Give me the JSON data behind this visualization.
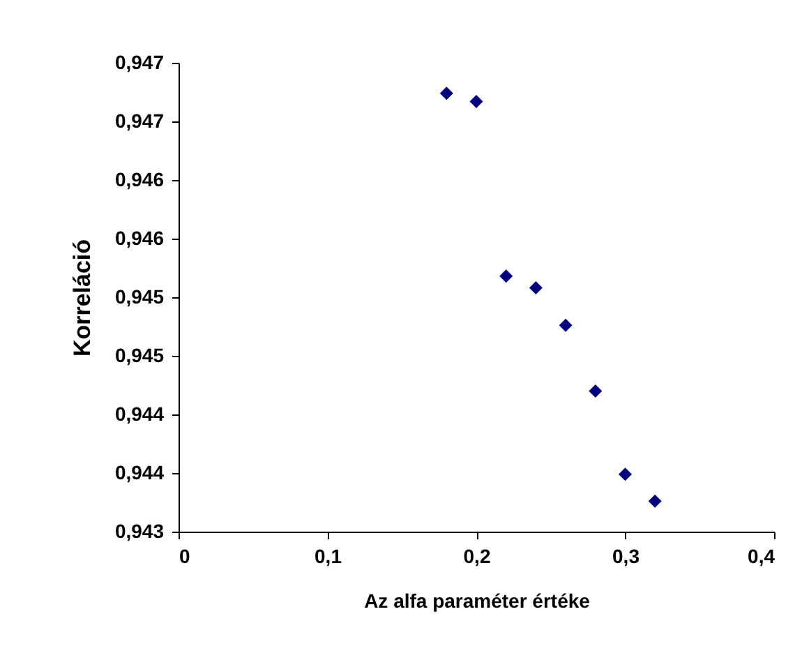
{
  "chart_data": {
    "type": "scatter",
    "xlabel": "Az alfa paraméter értéke",
    "ylabel": "Korreláció",
    "x": [
      0.18,
      0.2,
      0.22,
      0.24,
      0.26,
      0.28,
      0.3,
      0.32
    ],
    "series": [
      {
        "color": "#00007f",
        "values": [
          0.94674,
          0.94667,
          0.94518,
          0.94508,
          0.94476,
          0.9442,
          0.94349,
          0.94326
        ]
      }
    ],
    "marker": "diamond",
    "grid": false,
    "xlim": [
      0,
      0.4
    ],
    "xticks": [
      {
        "value": 0,
        "label": "0"
      },
      {
        "value": 0.1,
        "label": "0,1"
      },
      {
        "value": 0.2,
        "label": "0,2"
      },
      {
        "value": 0.3,
        "label": "0,3"
      },
      {
        "value": 0.4,
        "label": "0,4"
      }
    ],
    "ylim": [
      0.943,
      0.947
    ],
    "yticks": [
      {
        "value": 0.943,
        "label": "0,943"
      },
      {
        "value": 0.9435,
        "label": "0,944"
      },
      {
        "value": 0.944,
        "label": "0,944"
      },
      {
        "value": 0.9445,
        "label": "0,945"
      },
      {
        "value": 0.945,
        "label": "0,945"
      },
      {
        "value": 0.9455,
        "label": "0,946"
      },
      {
        "value": 0.946,
        "label": "0,946"
      },
      {
        "value": 0.9465,
        "label": "0,947"
      },
      {
        "value": 0.947,
        "label": "0,947"
      }
    ]
  }
}
